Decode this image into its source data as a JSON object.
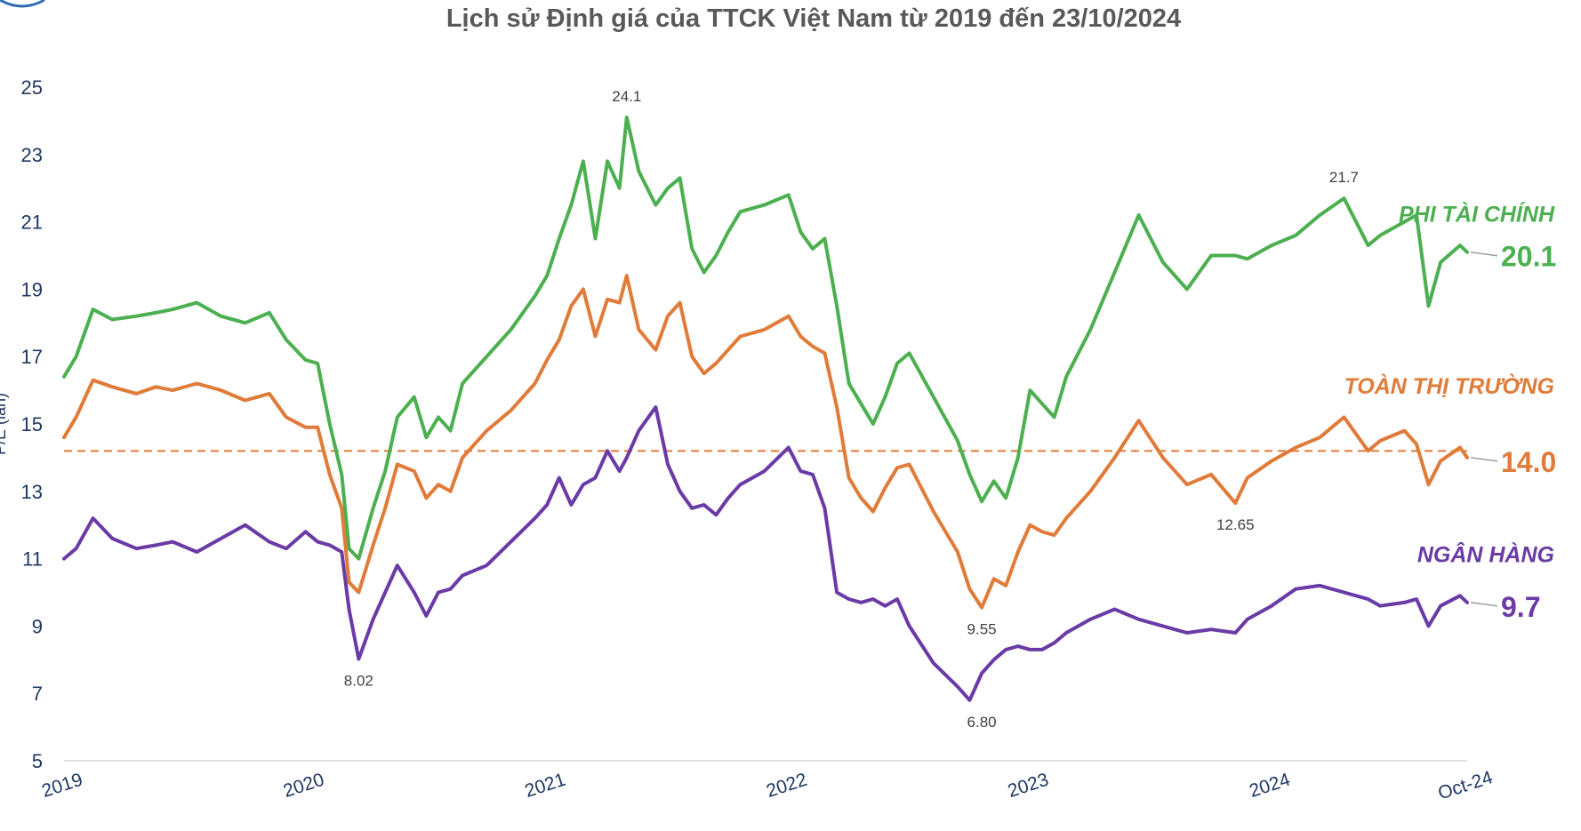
{
  "chart_data": {
    "type": "line",
    "title": "Lịch sử Định giá của TTCK Việt Nam từ 2019 đến 23/10/2024",
    "ylabel": "P/E (lần)",
    "xlabel": "",
    "ylim": [
      5,
      25
    ],
    "yticks": [
      "25",
      "23",
      "21",
      "19",
      "17",
      "15",
      "13",
      "11",
      "9",
      "7",
      "5"
    ],
    "xticks": [
      "2019",
      "2020",
      "2021",
      "2022",
      "2023",
      "2024",
      "Oct-24"
    ],
    "xrange": [
      2019.0,
      2024.81
    ],
    "grid": false,
    "reference_line": {
      "value": 14.2,
      "style": "dashed",
      "color": "#E07B39"
    },
    "series": [
      {
        "name": "PHI TÀI CHÍNH",
        "color": "#4CAF50",
        "end_label": "20.1",
        "x": [
          2019.0,
          2019.05,
          2019.12,
          2019.2,
          2019.3,
          2019.38,
          2019.45,
          2019.55,
          2019.65,
          2019.75,
          2019.85,
          2019.92,
          2020.0,
          2020.05,
          2020.1,
          2020.15,
          2020.18,
          2020.22,
          2020.28,
          2020.33,
          2020.38,
          2020.45,
          2020.5,
          2020.55,
          2020.6,
          2020.65,
          2020.75,
          2020.85,
          2020.95,
          2021.0,
          2021.05,
          2021.1,
          2021.15,
          2021.2,
          2021.25,
          2021.3,
          2021.33,
          2021.38,
          2021.45,
          2021.5,
          2021.55,
          2021.6,
          2021.65,
          2021.7,
          2021.75,
          2021.8,
          2021.9,
          2022.0,
          2022.05,
          2022.1,
          2022.15,
          2022.2,
          2022.25,
          2022.3,
          2022.35,
          2022.4,
          2022.45,
          2022.5,
          2022.6,
          2022.7,
          2022.75,
          2022.8,
          2022.85,
          2022.9,
          2022.95,
          2023.0,
          2023.05,
          2023.1,
          2023.15,
          2023.25,
          2023.35,
          2023.45,
          2023.55,
          2023.65,
          2023.75,
          2023.85,
          2023.9,
          2024.0,
          2024.1,
          2024.2,
          2024.3,
          2024.4,
          2024.45,
          2024.55,
          2024.6,
          2024.65,
          2024.7,
          2024.78,
          2024.81
        ],
        "values": [
          16.4,
          17.0,
          18.4,
          18.1,
          18.2,
          18.3,
          18.4,
          18.6,
          18.2,
          18.0,
          18.3,
          17.5,
          16.9,
          16.8,
          15.0,
          13.5,
          11.3,
          11.0,
          12.5,
          13.6,
          15.2,
          15.8,
          14.6,
          15.2,
          14.8,
          16.2,
          17.0,
          17.8,
          18.8,
          19.4,
          20.5,
          21.5,
          22.8,
          20.5,
          22.8,
          22.0,
          24.1,
          22.5,
          21.5,
          22.0,
          22.3,
          20.2,
          19.5,
          20.0,
          20.7,
          21.3,
          21.5,
          21.8,
          20.7,
          20.2,
          20.5,
          18.5,
          16.2,
          15.6,
          15.0,
          15.8,
          16.8,
          17.1,
          15.8,
          14.5,
          13.5,
          12.7,
          13.3,
          12.8,
          14.0,
          16.0,
          15.6,
          15.2,
          16.4,
          17.8,
          19.5,
          21.2,
          19.8,
          19.0,
          20.0,
          20.0,
          19.9,
          20.3,
          20.6,
          21.2,
          21.7,
          20.3,
          20.6,
          21.0,
          21.2,
          18.5,
          19.8,
          20.3,
          20.1
        ]
      },
      {
        "name": "TOÀN THỊ TRƯỜNG",
        "color": "#E07B39",
        "end_label": "14.0",
        "x": [
          2019.0,
          2019.05,
          2019.12,
          2019.2,
          2019.3,
          2019.38,
          2019.45,
          2019.55,
          2019.65,
          2019.75,
          2019.85,
          2019.92,
          2020.0,
          2020.05,
          2020.1,
          2020.15,
          2020.18,
          2020.22,
          2020.28,
          2020.33,
          2020.38,
          2020.45,
          2020.5,
          2020.55,
          2020.6,
          2020.65,
          2020.75,
          2020.85,
          2020.95,
          2021.0,
          2021.05,
          2021.1,
          2021.15,
          2021.2,
          2021.25,
          2021.3,
          2021.33,
          2021.38,
          2021.45,
          2021.5,
          2021.55,
          2021.6,
          2021.65,
          2021.7,
          2021.75,
          2021.8,
          2021.9,
          2022.0,
          2022.05,
          2022.1,
          2022.15,
          2022.2,
          2022.25,
          2022.3,
          2022.35,
          2022.4,
          2022.45,
          2022.5,
          2022.6,
          2022.7,
          2022.75,
          2022.8,
          2022.85,
          2022.9,
          2022.95,
          2023.0,
          2023.05,
          2023.1,
          2023.15,
          2023.25,
          2023.35,
          2023.45,
          2023.55,
          2023.65,
          2023.75,
          2023.85,
          2023.9,
          2024.0,
          2024.1,
          2024.2,
          2024.3,
          2024.4,
          2024.45,
          2024.55,
          2024.6,
          2024.65,
          2024.7,
          2024.78,
          2024.81
        ],
        "values": [
          14.6,
          15.2,
          16.3,
          16.1,
          15.9,
          16.1,
          16.0,
          16.2,
          16.0,
          15.7,
          15.9,
          15.2,
          14.9,
          14.9,
          13.5,
          12.5,
          10.3,
          10.0,
          11.4,
          12.5,
          13.8,
          13.6,
          12.8,
          13.2,
          13.0,
          14.0,
          14.8,
          15.4,
          16.2,
          16.9,
          17.5,
          18.5,
          19.0,
          17.6,
          18.7,
          18.6,
          19.4,
          17.8,
          17.2,
          18.2,
          18.6,
          17.0,
          16.5,
          16.8,
          17.2,
          17.6,
          17.8,
          18.2,
          17.6,
          17.3,
          17.1,
          15.5,
          13.4,
          12.8,
          12.4,
          13.1,
          13.7,
          13.8,
          12.4,
          11.2,
          10.1,
          9.55,
          10.4,
          10.2,
          11.2,
          12.0,
          11.8,
          11.7,
          12.2,
          13.0,
          14.0,
          15.1,
          14.0,
          13.2,
          13.5,
          12.65,
          13.4,
          13.9,
          14.3,
          14.6,
          15.2,
          14.2,
          14.5,
          14.8,
          14.4,
          13.2,
          13.9,
          14.3,
          14.0
        ]
      },
      {
        "name": "NGÂN HÀNG",
        "color": "#6A3BA6",
        "end_label": "9.7",
        "x": [
          2019.0,
          2019.05,
          2019.12,
          2019.2,
          2019.3,
          2019.38,
          2019.45,
          2019.55,
          2019.65,
          2019.75,
          2019.85,
          2019.92,
          2020.0,
          2020.05,
          2020.1,
          2020.15,
          2020.18,
          2020.22,
          2020.28,
          2020.33,
          2020.38,
          2020.45,
          2020.5,
          2020.55,
          2020.6,
          2020.65,
          2020.75,
          2020.85,
          2020.95,
          2021.0,
          2021.05,
          2021.1,
          2021.15,
          2021.2,
          2021.25,
          2021.3,
          2021.33,
          2021.38,
          2021.45,
          2021.5,
          2021.55,
          2021.6,
          2021.65,
          2021.7,
          2021.75,
          2021.8,
          2021.9,
          2022.0,
          2022.05,
          2022.1,
          2022.15,
          2022.2,
          2022.25,
          2022.3,
          2022.35,
          2022.4,
          2022.45,
          2022.5,
          2022.6,
          2022.7,
          2022.75,
          2022.8,
          2022.85,
          2022.9,
          2022.95,
          2023.0,
          2023.05,
          2023.1,
          2023.15,
          2023.25,
          2023.35,
          2023.45,
          2023.55,
          2023.65,
          2023.75,
          2023.85,
          2023.9,
          2024.0,
          2024.1,
          2024.2,
          2024.3,
          2024.4,
          2024.45,
          2024.55,
          2024.6,
          2024.65,
          2024.7,
          2024.78,
          2024.81
        ],
        "values": [
          11.0,
          11.3,
          12.2,
          11.6,
          11.3,
          11.4,
          11.5,
          11.2,
          11.6,
          12.0,
          11.5,
          11.3,
          11.8,
          11.5,
          11.4,
          11.2,
          9.5,
          8.02,
          9.2,
          10.0,
          10.8,
          10.0,
          9.3,
          10.0,
          10.1,
          10.5,
          10.8,
          11.5,
          12.2,
          12.6,
          13.4,
          12.6,
          13.2,
          13.4,
          14.2,
          13.6,
          14.0,
          14.8,
          15.5,
          13.8,
          13.0,
          12.5,
          12.6,
          12.3,
          12.8,
          13.2,
          13.6,
          14.3,
          13.6,
          13.5,
          12.5,
          10.0,
          9.8,
          9.7,
          9.8,
          9.6,
          9.8,
          9.0,
          7.9,
          7.2,
          6.8,
          7.6,
          8.0,
          8.3,
          8.4,
          8.3,
          8.3,
          8.5,
          8.8,
          9.2,
          9.5,
          9.2,
          9.0,
          8.8,
          8.9,
          8.8,
          9.2,
          9.6,
          10.1,
          10.2,
          10.0,
          9.8,
          9.6,
          9.7,
          9.8,
          9.0,
          9.6,
          9.9,
          9.7
        ]
      }
    ],
    "annotations": [
      {
        "label": "24.1",
        "x": 2021.33,
        "y": 24.1,
        "pos": "above"
      },
      {
        "label": "8.02",
        "x": 2020.22,
        "y": 8.02,
        "pos": "below"
      },
      {
        "label": "9.55",
        "x": 2022.8,
        "y": 9.55,
        "pos": "below"
      },
      {
        "label": "6.80",
        "x": 2022.8,
        "y": 6.8,
        "pos": "below"
      },
      {
        "label": "12.65",
        "x": 2023.85,
        "y": 12.65,
        "pos": "below"
      },
      {
        "label": "21.7",
        "x": 2024.3,
        "y": 21.7,
        "pos": "above"
      }
    ]
  }
}
